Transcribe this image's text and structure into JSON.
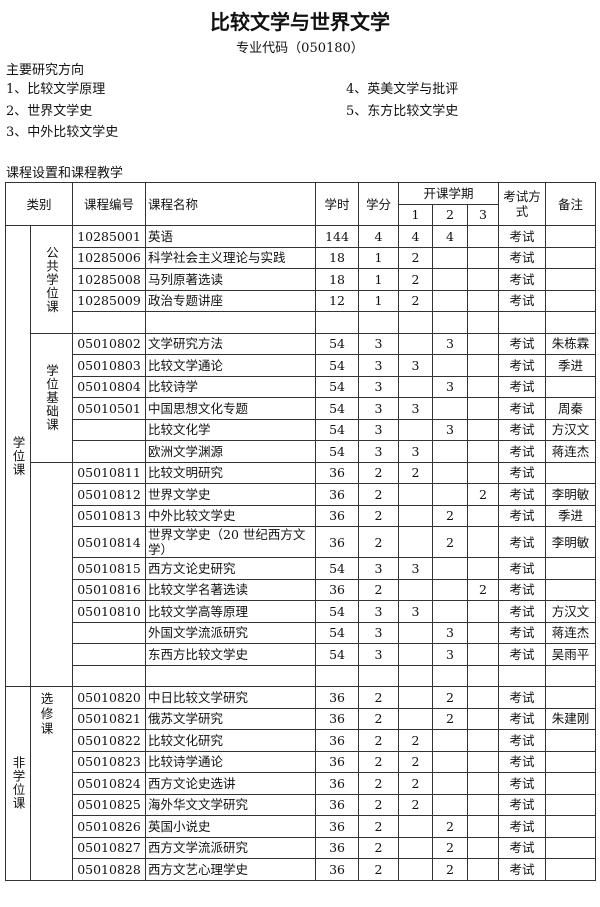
{
  "title": "比较文学与世界文学",
  "subtitle": "专业代码（050180）",
  "directions_heading": "主要研究方向",
  "directions": [
    "1、比较文学原理",
    "2、世界文学史",
    "3、中外比较文学史",
    "4、英美文学与批评",
    "5、东方比较文学史"
  ],
  "table_heading": "课程设置和课程教学",
  "table": {
    "header": {
      "category": "类别",
      "code": "课程编号",
      "name": "课程名称",
      "hours": "学时",
      "credits": "学分",
      "semester": "开课学期",
      "s1": "1",
      "s2": "2",
      "s3": "3",
      "exam": "考试方式",
      "note": "备注"
    },
    "sections": [
      {
        "label": "学位课",
        "groups": [
          {
            "label": "公共学位课",
            "courses": [
              {
                "code": "10285001",
                "name": "英语",
                "hours": 144,
                "credits": 4,
                "s1": 4,
                "s2": 4,
                "exam": "考试"
              },
              {
                "code": "10285006",
                "name": "科学社会主义理论与实践",
                "hours": 18,
                "credits": 1,
                "s1": 2,
                "exam": "考试"
              },
              {
                "code": "10285008",
                "name": "马列原著选读",
                "hours": 18,
                "credits": 1,
                "s1": 2,
                "exam": "考试"
              },
              {
                "code": "10285009",
                "name": "政治专题讲座",
                "hours": 12,
                "credits": 1,
                "s1": 2,
                "exam": "考试"
              },
              null
            ]
          },
          {
            "label": "学位基础课",
            "courses": [
              {
                "code": "05010802",
                "name": "文学研究方法",
                "hours": 54,
                "credits": 3,
                "s2": 3,
                "exam": "考试",
                "note": "朱栋霖"
              },
              {
                "code": "05010803",
                "name": "比较文学通论",
                "hours": 54,
                "credits": 3,
                "s1": 3,
                "exam": "考试",
                "note": "季进"
              },
              {
                "code": "05010804",
                "name": "比较诗学",
                "hours": 54,
                "credits": 3,
                "s2": 3,
                "exam": "考试"
              },
              {
                "code": "05010501",
                "name": "中国思想文化专题",
                "hours": 54,
                "credits": 3,
                "s1": 3,
                "exam": "考试",
                "note": "周秦"
              },
              {
                "name": "比较文化学",
                "hours": 54,
                "credits": 3,
                "s2": 3,
                "exam": "考试",
                "note": "方汉文"
              },
              {
                "name": "欧洲文学渊源",
                "hours": 54,
                "credits": 3,
                "s1": 3,
                "exam": "考试",
                "note": "蒋连杰"
              }
            ]
          },
          {
            "courses": [
              {
                "code": "05010811",
                "name": "比较文明研究",
                "hours": 36,
                "credits": 2,
                "s1": 2,
                "exam": "考试"
              },
              {
                "code": "05010812",
                "name": "世界文学史",
                "hours": 36,
                "credits": 2,
                "s3": 2,
                "exam": "考试",
                "note": "李明敏"
              },
              {
                "code": "05010813",
                "name": "中外比较文学史",
                "hours": 36,
                "credits": 2,
                "s2": 2,
                "exam": "考试",
                "note": "季进"
              },
              {
                "code": "05010814",
                "name": "世界文学史（20 世纪西方文学）",
                "hours": 36,
                "credits": 2,
                "s2": 2,
                "exam": "考试",
                "note": "李明敏"
              },
              {
                "code": "05010815",
                "name": "西方文论史研究",
                "hours": 54,
                "credits": 3,
                "s1": 3,
                "exam": "考试"
              },
              {
                "code": "05010816",
                "name": "比较文学名著选读",
                "hours": 36,
                "credits": 2,
                "s3": 2,
                "exam": "考试"
              },
              {
                "code": "05010810",
                "name": "比较文学高等原理",
                "hours": 54,
                "credits": 3,
                "s1": 3,
                "exam": "考试",
                "note": "方汉文"
              },
              {
                "name": "外国文学流派研究",
                "hours": 54,
                "credits": 3,
                "s2": 3,
                "exam": "考试",
                "note": "蒋连杰"
              },
              {
                "name": "东西方比较文学史",
                "hours": 54,
                "credits": 3,
                "s2": 3,
                "exam": "考试",
                "note": "吴雨平"
              },
              null
            ]
          }
        ]
      },
      {
        "label": "非学位课",
        "groups": [
          {
            "label": "选修课",
            "courses": [
              {
                "code": "05010820",
                "name": "中日比较文学研究",
                "hours": 36,
                "credits": 2,
                "s2": 2,
                "exam": "考试"
              },
              {
                "code": "05010821",
                "name": "俄苏文学研究",
                "hours": 36,
                "credits": 2,
                "s2": 2,
                "exam": "考试",
                "note": "朱建刚"
              },
              {
                "code": "05010822",
                "name": "比较文化研究",
                "hours": 36,
                "credits": 2,
                "s1": 2,
                "exam": "考试"
              },
              {
                "code": "05010823",
                "name": "比较诗学通论",
                "hours": 36,
                "credits": 2,
                "s1": 2,
                "exam": "考试"
              },
              {
                "code": "05010824",
                "name": "西方文论史选讲",
                "hours": 36,
                "credits": 2,
                "s1": 2,
                "exam": "考试"
              },
              {
                "code": "05010825",
                "name": "海外华文文学研究",
                "hours": 36,
                "credits": 2,
                "s1": 2,
                "exam": "考试"
              },
              {
                "code": "05010826",
                "name": "英国小说史",
                "hours": 36,
                "credits": 2,
                "s2": 2,
                "exam": "考试"
              },
              {
                "code": "05010827",
                "name": "西方文学流派研究",
                "hours": 36,
                "credits": 2,
                "s2": 2,
                "exam": "考试"
              },
              {
                "code": "05010828",
                "name": "西方文艺心理学史",
                "hours": 36,
                "credits": 2,
                "s2": 2,
                "exam": "考试"
              }
            ]
          }
        ]
      }
    ]
  }
}
